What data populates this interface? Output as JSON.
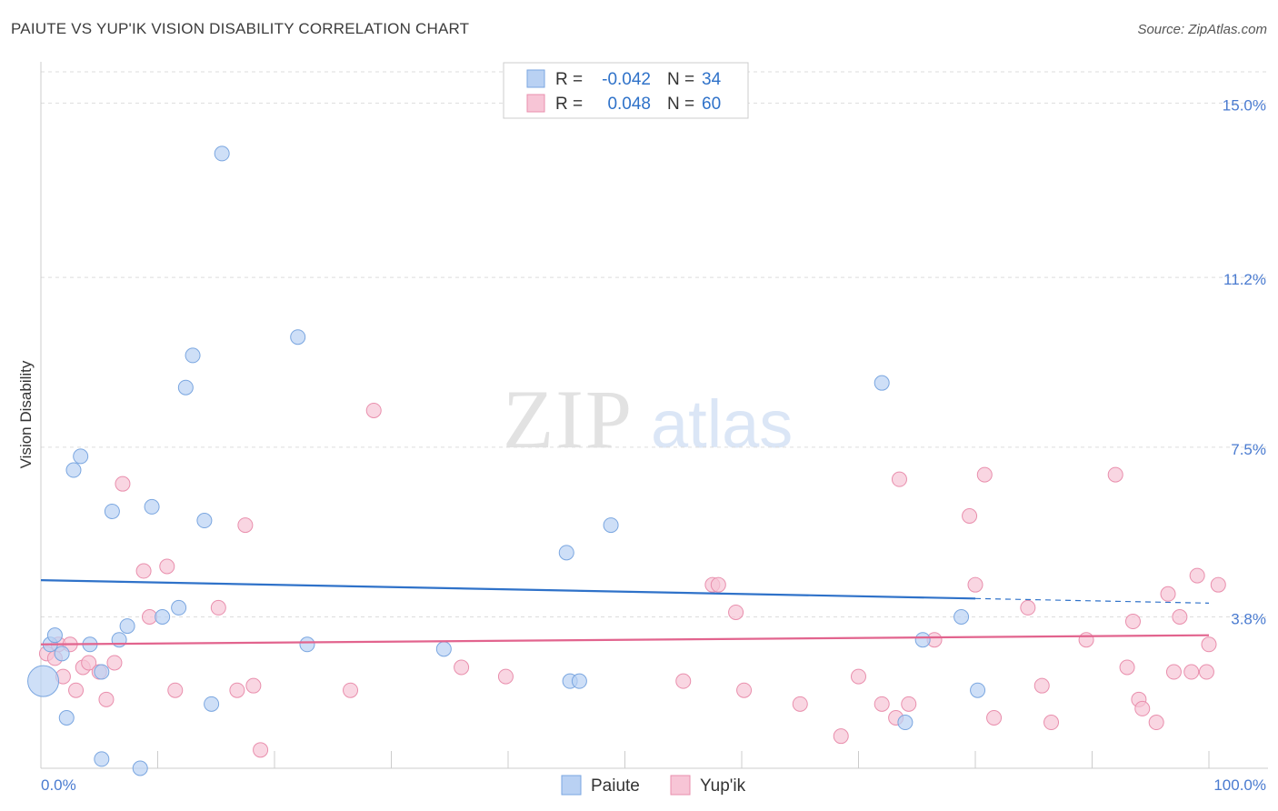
{
  "header": {
    "title": "PAIUTE VS YUP'IK VISION DISABILITY CORRELATION CHART",
    "source": "Source: ZipAtlas.com"
  },
  "watermark": {
    "zip": "ZIP",
    "atlas": "atlas"
  },
  "colors": {
    "paiute_fill": "#b9d1f3",
    "paiute_stroke": "#7aa6e0",
    "paiute_line": "#2f72c9",
    "yupik_fill": "#f7c5d6",
    "yupik_stroke": "#e98fad",
    "yupik_line": "#e2648e",
    "tick_label": "#4a7bd0",
    "grid": "#dddddd",
    "axis": "#bbbbbb"
  },
  "chart_data": {
    "type": "scatter",
    "title": "PAIUTE VS YUP'IK VISION DISABILITY CORRELATION CHART",
    "xlabel": "",
    "ylabel": "Vision Disability",
    "xlim": [
      0,
      100
    ],
    "ylim": [
      0.5,
      15.9
    ],
    "x_tick_labels": [
      "0.0%",
      "100.0%"
    ],
    "y_ticks": [
      {
        "value": 15.0,
        "label": "15.0%"
      },
      {
        "value": 11.2,
        "label": "11.2%"
      },
      {
        "value": 7.5,
        "label": "7.5%"
      },
      {
        "value": 3.8,
        "label": "3.8%"
      }
    ],
    "legend": {
      "position": "top-center",
      "entries": [
        {
          "series": "Paiute",
          "r_label": "R =",
          "r_value": "-0.042",
          "n_label": "N =",
          "n_value": "34"
        },
        {
          "series": "Yup'ik",
          "r_label": "R =",
          "r_value": "0.048",
          "n_label": "N =",
          "n_value": "60"
        }
      ]
    },
    "series": [
      {
        "name": "Paiute",
        "r": -0.042,
        "n": 34,
        "trend": {
          "x0": 0,
          "y0": 4.6,
          "x1": 80,
          "y1": 4.2,
          "dashed_to": 100,
          "dashed_y": 4.1
        },
        "points": [
          {
            "x": 0.2,
            "y": 2.4,
            "big": true
          },
          {
            "x": 0.8,
            "y": 3.2
          },
          {
            "x": 1.2,
            "y": 3.4
          },
          {
            "x": 1.8,
            "y": 3.0
          },
          {
            "x": 2.2,
            "y": 1.6
          },
          {
            "x": 2.8,
            "y": 7.0
          },
          {
            "x": 3.4,
            "y": 7.3
          },
          {
            "x": 4.2,
            "y": 3.2
          },
          {
            "x": 5.2,
            "y": 2.6
          },
          {
            "x": 5.2,
            "y": 0.7
          },
          {
            "x": 6.1,
            "y": 6.1
          },
          {
            "x": 6.7,
            "y": 3.3
          },
          {
            "x": 7.4,
            "y": 3.6
          },
          {
            "x": 8.5,
            "y": 0.5
          },
          {
            "x": 9.5,
            "y": 6.2
          },
          {
            "x": 10.4,
            "y": 3.8
          },
          {
            "x": 11.8,
            "y": 4.0
          },
          {
            "x": 12.4,
            "y": 8.8
          },
          {
            "x": 13.0,
            "y": 9.5
          },
          {
            "x": 14.0,
            "y": 5.9
          },
          {
            "x": 14.6,
            "y": 1.9
          },
          {
            "x": 15.5,
            "y": 13.9
          },
          {
            "x": 22.0,
            "y": 9.9
          },
          {
            "x": 22.8,
            "y": 3.2
          },
          {
            "x": 34.5,
            "y": 3.1
          },
          {
            "x": 45.0,
            "y": 5.2
          },
          {
            "x": 45.3,
            "y": 2.4
          },
          {
            "x": 46.1,
            "y": 2.4
          },
          {
            "x": 48.8,
            "y": 5.8
          },
          {
            "x": 72.0,
            "y": 8.9
          },
          {
            "x": 74.0,
            "y": 1.5
          },
          {
            "x": 75.5,
            "y": 3.3
          },
          {
            "x": 78.8,
            "y": 3.8
          },
          {
            "x": 80.2,
            "y": 2.2
          }
        ]
      },
      {
        "name": "Yup'ik",
        "r": 0.048,
        "n": 60,
        "trend": {
          "x0": 0,
          "y0": 3.2,
          "x1": 100,
          "y1": 3.4
        },
        "points": [
          {
            "x": 0.5,
            "y": 3.0
          },
          {
            "x": 1.2,
            "y": 2.9
          },
          {
            "x": 1.5,
            "y": 3.2
          },
          {
            "x": 1.9,
            "y": 2.5
          },
          {
            "x": 2.5,
            "y": 3.2
          },
          {
            "x": 3.0,
            "y": 2.2
          },
          {
            "x": 3.6,
            "y": 2.7
          },
          {
            "x": 4.1,
            "y": 2.8
          },
          {
            "x": 5.0,
            "y": 2.6
          },
          {
            "x": 5.6,
            "y": 2.0
          },
          {
            "x": 6.3,
            "y": 2.8
          },
          {
            "x": 7.0,
            "y": 6.7
          },
          {
            "x": 8.8,
            "y": 4.8
          },
          {
            "x": 9.3,
            "y": 3.8
          },
          {
            "x": 10.8,
            "y": 4.9
          },
          {
            "x": 11.5,
            "y": 2.2
          },
          {
            "x": 15.2,
            "y": 4.0
          },
          {
            "x": 16.8,
            "y": 2.2
          },
          {
            "x": 17.5,
            "y": 5.8
          },
          {
            "x": 18.2,
            "y": 2.3
          },
          {
            "x": 18.8,
            "y": 0.9
          },
          {
            "x": 26.5,
            "y": 2.2
          },
          {
            "x": 28.5,
            "y": 8.3
          },
          {
            "x": 36.0,
            "y": 2.7
          },
          {
            "x": 39.8,
            "y": 2.5
          },
          {
            "x": 55.0,
            "y": 2.4
          },
          {
            "x": 57.5,
            "y": 4.5
          },
          {
            "x": 58.0,
            "y": 4.5
          },
          {
            "x": 59.5,
            "y": 3.9
          },
          {
            "x": 60.2,
            "y": 2.2
          },
          {
            "x": 65.0,
            "y": 1.9
          },
          {
            "x": 68.5,
            "y": 1.2
          },
          {
            "x": 70.0,
            "y": 2.5
          },
          {
            "x": 72.0,
            "y": 1.9
          },
          {
            "x": 73.2,
            "y": 1.6
          },
          {
            "x": 73.5,
            "y": 6.8
          },
          {
            "x": 74.3,
            "y": 1.9
          },
          {
            "x": 76.5,
            "y": 3.3
          },
          {
            "x": 79.5,
            "y": 6.0
          },
          {
            "x": 80.0,
            "y": 4.5
          },
          {
            "x": 80.8,
            "y": 6.9
          },
          {
            "x": 81.6,
            "y": 1.6
          },
          {
            "x": 84.5,
            "y": 4.0
          },
          {
            "x": 85.7,
            "y": 2.3
          },
          {
            "x": 86.5,
            "y": 1.5
          },
          {
            "x": 89.5,
            "y": 3.3
          },
          {
            "x": 92.0,
            "y": 6.9
          },
          {
            "x": 93.0,
            "y": 2.7
          },
          {
            "x": 94.0,
            "y": 2.0
          },
          {
            "x": 94.3,
            "y": 1.8
          },
          {
            "x": 95.5,
            "y": 1.5
          },
          {
            "x": 96.5,
            "y": 4.3
          },
          {
            "x": 97.0,
            "y": 2.6
          },
          {
            "x": 97.5,
            "y": 3.8
          },
          {
            "x": 99.0,
            "y": 4.7
          },
          {
            "x": 99.8,
            "y": 2.6
          },
          {
            "x": 100.0,
            "y": 3.2
          },
          {
            "x": 100.8,
            "y": 4.5
          },
          {
            "x": 98.5,
            "y": 2.6
          },
          {
            "x": 93.5,
            "y": 3.7
          }
        ]
      }
    ]
  }
}
